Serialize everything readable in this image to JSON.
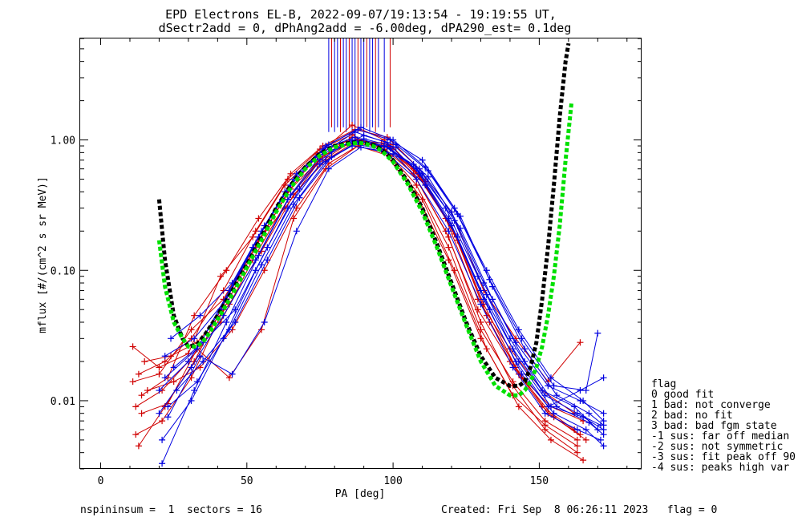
{
  "figure": {
    "title_line1": "EPD Electrons EL-B, 2022-09-07/19:13:54 - 19:19:55 UT,",
    "title_line2": "dSectr2add = 0, dPhAng2add = -6.00deg, dPA290_est=   0.1deg",
    "footer_left": "nspininsum =  1  sectors = 16",
    "footer_right": "Created: Fri Sep  8 06:26:11 2023   flag = 0"
  },
  "legend": {
    "title": "flag",
    "items": [
      " 0 good fit",
      " 1 bad: not converge",
      " 2 bad: no fit",
      " 3 bad: bad fgm state",
      "-1 sus: far off median",
      "-2 sus: not symmetric",
      "-3 sus: fit peak off 90",
      "-4 sus: peaks high var"
    ]
  },
  "colors": {
    "red": "#d00000",
    "blue": "#0000e0",
    "green": "#00e000",
    "black": "#000000",
    "axes": "#000000"
  },
  "chart_data": {
    "type": "line",
    "xlabel": "PA [deg]",
    "ylabel": "mflux [#/(cm^2 s sr MeV)]",
    "xlim": [
      -7,
      185
    ],
    "ylim": [
      0.003,
      6.0
    ],
    "yscale": "log",
    "xticks": [
      0,
      50,
      100,
      150
    ],
    "xticklabels": [
      "0",
      "50",
      "100",
      "150"
    ],
    "yticks": [
      0.01,
      0.1,
      1.0
    ],
    "yticklabels": [
      "0.01",
      "0.10",
      "1.00"
    ],
    "fit_black": {
      "x": [
        20,
        22,
        25,
        28,
        30,
        33,
        36,
        40,
        45,
        50,
        55,
        60,
        65,
        70,
        75,
        80,
        85,
        88,
        90,
        93,
        96,
        100,
        105,
        110,
        115,
        120,
        125,
        130,
        135,
        140,
        143,
        145,
        147,
        149,
        151,
        153,
        155,
        157,
        159,
        160
      ],
      "y": [
        0.35,
        0.12,
        0.045,
        0.03,
        0.026,
        0.027,
        0.033,
        0.045,
        0.07,
        0.11,
        0.18,
        0.3,
        0.45,
        0.62,
        0.78,
        0.9,
        0.95,
        0.96,
        0.95,
        0.92,
        0.85,
        0.7,
        0.48,
        0.3,
        0.16,
        0.08,
        0.04,
        0.022,
        0.015,
        0.013,
        0.013,
        0.014,
        0.018,
        0.028,
        0.06,
        0.15,
        0.45,
        1.5,
        4.0,
        5.5
      ]
    },
    "fit_green": {
      "x": [
        20,
        22,
        25,
        28,
        30,
        33,
        36,
        40,
        45,
        50,
        55,
        60,
        65,
        70,
        75,
        80,
        85,
        88,
        90,
        93,
        96,
        100,
        105,
        110,
        115,
        120,
        125,
        130,
        135,
        140,
        143,
        145,
        147,
        149,
        151,
        153,
        155,
        157,
        159,
        161
      ],
      "y": [
        0.17,
        0.075,
        0.04,
        0.03,
        0.026,
        0.026,
        0.03,
        0.042,
        0.065,
        0.105,
        0.17,
        0.28,
        0.43,
        0.6,
        0.76,
        0.88,
        0.93,
        0.95,
        0.94,
        0.9,
        0.83,
        0.68,
        0.46,
        0.28,
        0.15,
        0.075,
        0.038,
        0.02,
        0.013,
        0.011,
        0.011,
        0.012,
        0.014,
        0.018,
        0.026,
        0.045,
        0.09,
        0.22,
        0.7,
        1.9
      ]
    },
    "series": [
      {
        "color": "red",
        "x": [
          11,
          20,
          30,
          41,
          52,
          63,
          74,
          85,
          96,
          107,
          118,
          129,
          140,
          151,
          162
        ],
        "y": [
          0.026,
          0.018,
          0.023,
          0.09,
          0.18,
          0.45,
          0.78,
          1.0,
          0.9,
          0.55,
          0.2,
          0.05,
          0.02,
          0.009,
          0.006
        ]
      },
      {
        "color": "red",
        "x": [
          11,
          20,
          31,
          42,
          52,
          63,
          74,
          85,
          96,
          107,
          118,
          129,
          140,
          151,
          162
        ],
        "y": [
          0.014,
          0.016,
          0.035,
          0.06,
          0.15,
          0.3,
          0.65,
          0.95,
          0.95,
          0.6,
          0.25,
          0.06,
          0.025,
          0.012,
          0.008
        ]
      },
      {
        "color": "red",
        "x": [
          12,
          21,
          30,
          41,
          52,
          64,
          75,
          86,
          97,
          108,
          119,
          130,
          141,
          152,
          163
        ],
        "y": [
          0.009,
          0.012,
          0.02,
          0.04,
          0.12,
          0.35,
          0.72,
          1.05,
          0.85,
          0.45,
          0.15,
          0.035,
          0.014,
          0.007,
          0.005
        ]
      },
      {
        "color": "red",
        "x": [
          12,
          21,
          31,
          42,
          53,
          64,
          75,
          86,
          97,
          108,
          119,
          130,
          141,
          152,
          163
        ],
        "y": [
          0.0055,
          0.007,
          0.015,
          0.05,
          0.15,
          0.4,
          0.8,
          1.3,
          1.0,
          0.5,
          0.18,
          0.04,
          0.013,
          0.006,
          0.004
        ]
      },
      {
        "color": "red",
        "x": [
          13,
          22,
          31,
          42,
          53,
          64,
          75,
          86,
          97,
          108,
          119,
          130,
          141,
          152,
          163
        ],
        "y": [
          0.016,
          0.02,
          0.03,
          0.07,
          0.2,
          0.5,
          0.85,
          1.1,
          0.8,
          0.38,
          0.12,
          0.03,
          0.011,
          0.0065,
          0.0045
        ]
      },
      {
        "color": "red",
        "x": [
          13,
          22,
          32,
          43,
          54,
          65,
          76,
          87,
          98,
          109,
          120,
          131,
          142,
          153,
          164
        ],
        "y": [
          0.0045,
          0.009,
          0.02,
          0.06,
          0.17,
          0.42,
          0.75,
          0.98,
          0.9,
          0.52,
          0.22,
          0.055,
          0.018,
          0.008,
          0.0055
        ]
      },
      {
        "color": "red",
        "x": [
          14,
          23,
          32,
          43,
          54,
          65,
          76,
          87,
          98,
          109,
          120,
          131,
          142,
          153,
          164
        ],
        "y": [
          0.011,
          0.015,
          0.045,
          0.1,
          0.25,
          0.55,
          0.9,
          1.2,
          1.05,
          0.6,
          0.28,
          0.07,
          0.03,
          0.014,
          0.028
        ]
      },
      {
        "color": "red",
        "x": [
          14,
          23,
          33,
          44,
          55,
          66,
          77,
          88,
          99,
          110,
          121,
          132,
          143,
          154,
          165
        ],
        "y": [
          0.008,
          0.0095,
          0.025,
          0.015,
          0.035,
          0.25,
          0.6,
          0.9,
          0.75,
          0.35,
          0.1,
          0.025,
          0.009,
          0.005,
          0.0035
        ]
      },
      {
        "color": "red",
        "x": [
          15,
          24,
          33,
          44,
          55,
          66,
          77,
          88,
          99,
          110,
          121,
          132,
          143,
          154,
          165
        ],
        "y": [
          0.02,
          0.022,
          0.028,
          0.055,
          0.14,
          0.38,
          0.7,
          1.0,
          0.92,
          0.5,
          0.19,
          0.045,
          0.016,
          0.009,
          0.007
        ]
      },
      {
        "color": "red",
        "x": [
          16,
          25,
          34,
          45,
          56,
          67,
          78,
          89,
          100,
          111,
          122,
          133,
          144,
          155,
          166
        ],
        "y": [
          0.012,
          0.014,
          0.018,
          0.035,
          0.1,
          0.3,
          0.66,
          0.93,
          0.88,
          0.48,
          0.17,
          0.04,
          0.015,
          0.0075,
          0.005
        ]
      },
      {
        "color": "blue",
        "x": [
          20,
          30,
          41,
          52,
          63,
          74,
          85,
          96,
          107,
          118,
          129,
          140,
          151,
          162,
          170
        ],
        "y": [
          0.012,
          0.02,
          0.05,
          0.15,
          0.4,
          0.75,
          0.95,
          0.85,
          0.65,
          0.3,
          0.09,
          0.03,
          0.012,
          0.009,
          0.006
        ]
      },
      {
        "color": "blue",
        "x": [
          20,
          31,
          42,
          53,
          64,
          75,
          86,
          97,
          108,
          119,
          130,
          141,
          152,
          163,
          171
        ],
        "y": [
          0.008,
          0.018,
          0.045,
          0.12,
          0.35,
          0.7,
          1.0,
          0.9,
          0.6,
          0.25,
          0.07,
          0.025,
          0.011,
          0.008,
          0.0065
        ]
      },
      {
        "color": "blue",
        "x": [
          21,
          31,
          42,
          53,
          64,
          75,
          86,
          97,
          108,
          119,
          130,
          141,
          152,
          163,
          171
        ],
        "y": [
          0.005,
          0.01,
          0.03,
          0.1,
          0.3,
          0.65,
          0.9,
          0.82,
          0.5,
          0.2,
          0.055,
          0.018,
          0.008,
          0.006,
          0.005
        ]
      },
      {
        "color": "blue",
        "x": [
          21,
          32,
          43,
          54,
          65,
          76,
          87,
          98,
          109,
          120,
          131,
          142,
          153,
          164,
          172
        ],
        "y": [
          0.0033,
          0.012,
          0.04,
          0.13,
          0.38,
          0.8,
          1.15,
          0.95,
          0.55,
          0.22,
          0.06,
          0.02,
          0.009,
          0.012,
          0.015
        ]
      },
      {
        "color": "blue",
        "x": [
          22,
          32,
          43,
          54,
          65,
          76,
          87,
          98,
          109,
          120,
          131,
          142,
          153,
          164,
          172
        ],
        "y": [
          0.022,
          0.03,
          0.06,
          0.18,
          0.45,
          0.85,
          1.05,
          0.88,
          0.6,
          0.28,
          0.08,
          0.028,
          0.013,
          0.01,
          0.008
        ]
      },
      {
        "color": "blue",
        "x": [
          22,
          33,
          44,
          55,
          66,
          77,
          88,
          99,
          110,
          121,
          132,
          143,
          154,
          165,
          172
        ],
        "y": [
          0.015,
          0.025,
          0.07,
          0.2,
          0.5,
          0.9,
          1.2,
          1.0,
          0.7,
          0.3,
          0.1,
          0.035,
          0.015,
          0.01,
          0.007
        ]
      },
      {
        "color": "blue",
        "x": [
          23,
          33,
          44,
          55,
          66,
          77,
          88,
          99,
          110,
          121,
          132,
          143,
          154,
          165,
          172
        ],
        "y": [
          0.009,
          0.014,
          0.035,
          0.11,
          0.32,
          0.68,
          0.98,
          0.86,
          0.55,
          0.24,
          0.065,
          0.02,
          0.009,
          0.0075,
          0.006
        ]
      },
      {
        "color": "blue",
        "x": [
          23,
          34,
          45,
          56,
          67,
          78,
          89,
          100,
          111,
          122,
          133,
          144,
          155,
          166,
          172
        ],
        "y": [
          0.0075,
          0.022,
          0.016,
          0.04,
          0.2,
          0.6,
          0.88,
          0.78,
          0.45,
          0.18,
          0.05,
          0.016,
          0.008,
          0.006,
          0.0045
        ]
      },
      {
        "color": "blue",
        "x": [
          24,
          34,
          45,
          56,
          67,
          78,
          89,
          100,
          111,
          122,
          133,
          144,
          155,
          166,
          170
        ],
        "y": [
          0.03,
          0.045,
          0.08,
          0.22,
          0.55,
          0.92,
          1.25,
          1.0,
          0.62,
          0.27,
          0.085,
          0.03,
          0.013,
          0.012,
          0.033
        ]
      },
      {
        "color": "blue",
        "x": [
          25,
          35,
          46,
          57,
          68,
          79,
          90,
          101,
          112,
          123,
          134,
          145,
          156,
          167,
          172
        ],
        "y": [
          0.018,
          0.028,
          0.05,
          0.15,
          0.42,
          0.82,
          1.08,
          0.92,
          0.58,
          0.26,
          0.075,
          0.025,
          0.011,
          0.008,
          0.0065
        ]
      },
      {
        "color": "blue",
        "x": [
          26,
          35,
          46,
          57,
          68,
          79,
          90,
          101,
          112,
          123,
          134,
          145,
          156,
          167,
          172
        ],
        "y": [
          0.012,
          0.02,
          0.04,
          0.12,
          0.36,
          0.74,
          1.02,
          0.88,
          0.52,
          0.21,
          0.06,
          0.02,
          0.009,
          0.0068,
          0.0055
        ]
      }
    ],
    "spikes_x": [
      78,
      79,
      80,
      81,
      82,
      83,
      84,
      85,
      86,
      87,
      88,
      89,
      90,
      91,
      92,
      93,
      94,
      95,
      97,
      99
    ]
  }
}
